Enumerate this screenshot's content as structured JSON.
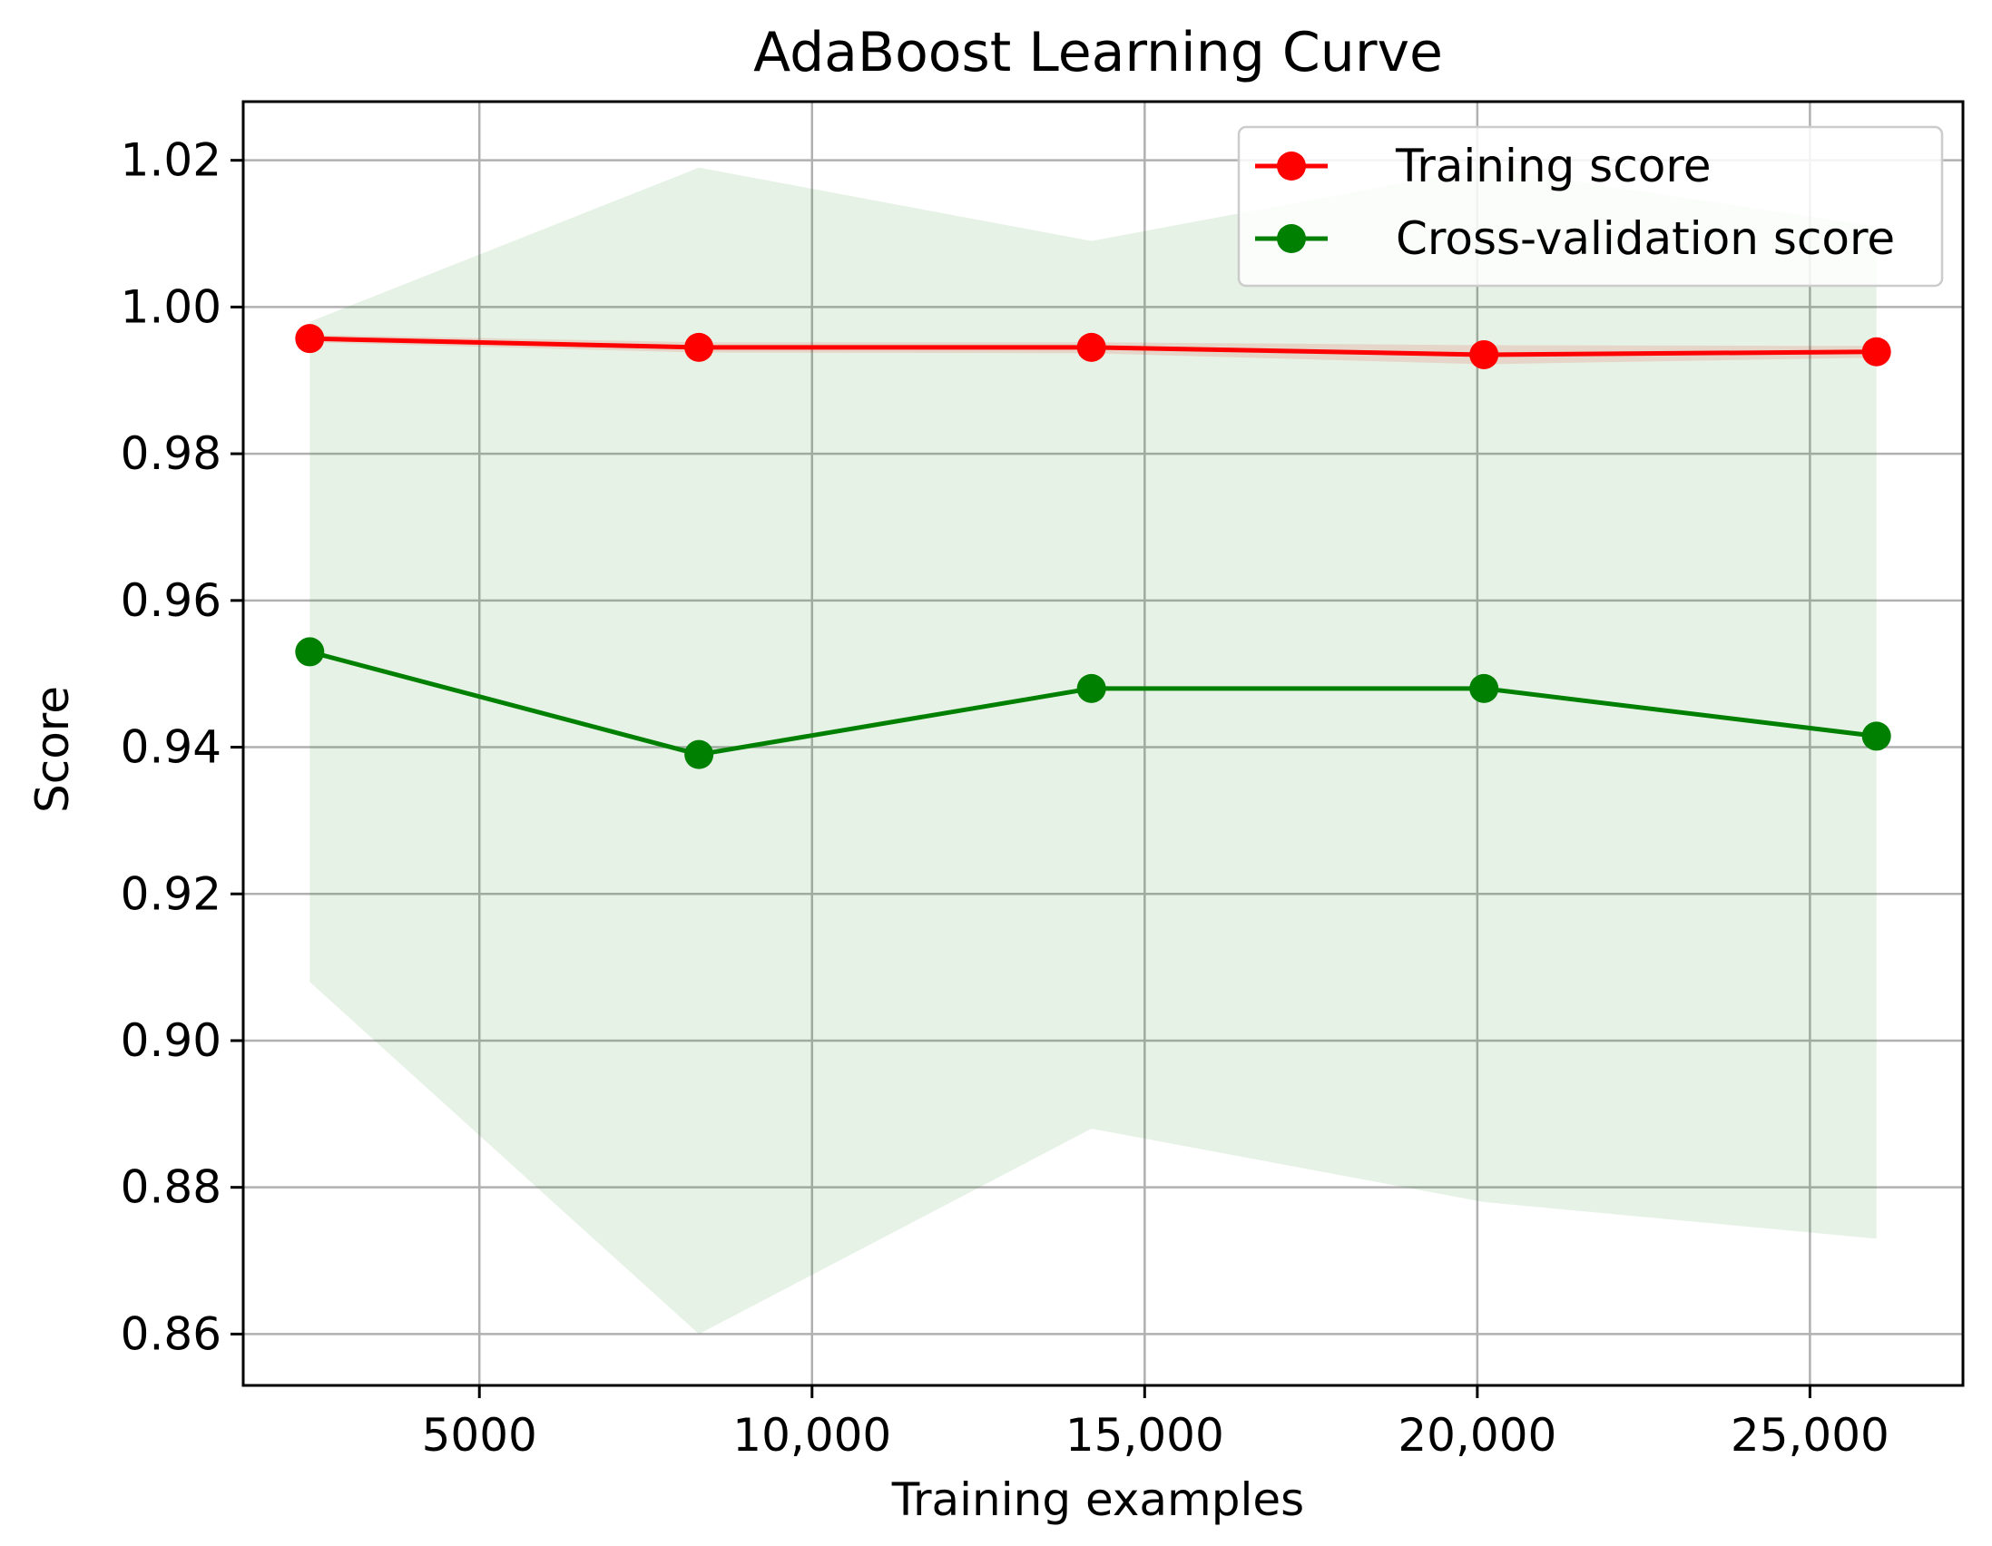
{
  "chart_data": {
    "type": "line",
    "title": "AdaBoost  Learning Curve",
    "xlabel": "Training examples",
    "ylabel": "Score",
    "xlim": [
      1450,
      27300
    ],
    "ylim": [
      0.853,
      1.028
    ],
    "x_ticks": [
      5000,
      10000,
      15000,
      20000,
      25000
    ],
    "x_tick_labels": [
      "5000",
      "10,000",
      "15,000",
      "20,000",
      "25,000"
    ],
    "y_ticks": [
      0.86,
      0.88,
      0.9,
      0.92,
      0.94,
      0.96,
      0.98,
      1.0,
      1.02
    ],
    "y_tick_labels": [
      "0.86",
      "0.88",
      "0.90",
      "0.92",
      "0.94",
      "0.96",
      "0.98",
      "1.00",
      "1.02"
    ],
    "grid": true,
    "legend_position": "top-right",
    "x": [
      2450,
      8300,
      14200,
      20100,
      26000
    ],
    "series": [
      {
        "name": "Training score",
        "color": "#ff0000",
        "values": [
          0.9957,
          0.9945,
          0.9945,
          0.9935,
          0.9939
        ],
        "band_lower": [
          0.9952,
          0.9938,
          0.9937,
          0.9922,
          0.9931
        ],
        "band_upper": [
          0.9962,
          0.9952,
          0.9952,
          0.9948,
          0.9947
        ],
        "band_color": "#ff0000"
      },
      {
        "name": "Cross-validation score",
        "color": "#008000",
        "values": [
          0.953,
          0.939,
          0.948,
          0.948,
          0.9415
        ],
        "band_lower": [
          0.908,
          0.86,
          0.888,
          0.878,
          0.873
        ],
        "band_upper": [
          0.998,
          1.019,
          1.009,
          1.019,
          1.011
        ],
        "band_color": "#008000"
      }
    ]
  }
}
